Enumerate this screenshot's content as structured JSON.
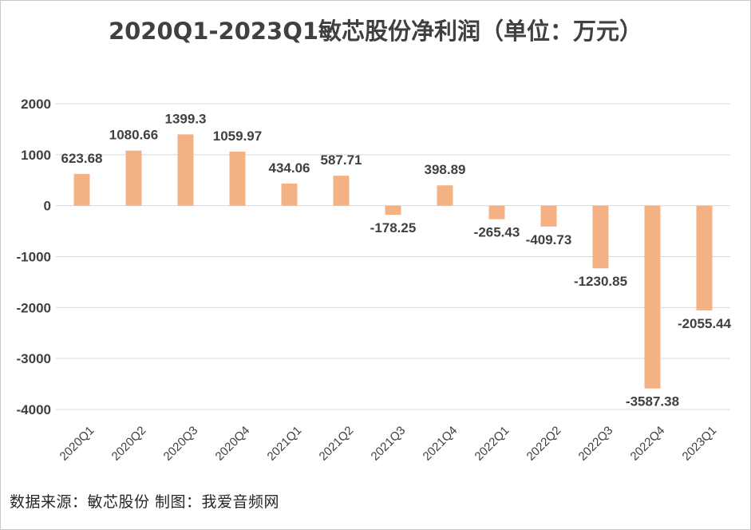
{
  "title": "2020Q1-2023Q1敏芯股份净利润（单位：万元）",
  "footer": "数据来源：敏芯股份 制图：我爱音频网",
  "colors": {
    "bar": "#f4b183",
    "grid": "#d9d9d9",
    "text": "#404040"
  },
  "chart_data": {
    "type": "bar",
    "title": "2020Q1-2023Q1敏芯股份净利润（单位：万元）",
    "xlabel": "",
    "ylabel": "",
    "ylim": [
      -4000,
      2000
    ],
    "yticks": [
      2000,
      1000,
      0,
      -1000,
      -2000,
      -3000,
      -4000
    ],
    "ytick_labels": [
      "2000",
      "1000",
      "0",
      "-1000",
      "-2000",
      "-3000",
      "-4000"
    ],
    "grid": true,
    "legend": "none",
    "categories": [
      "2020Q1",
      "2020Q2",
      "2020Q3",
      "2020Q4",
      "2021Q1",
      "2021Q2",
      "2021Q3",
      "2021Q4",
      "2022Q1",
      "2022Q2",
      "2022Q3",
      "2022Q4",
      "2023Q1"
    ],
    "values": [
      623.68,
      1080.66,
      1399.3,
      1059.97,
      434.06,
      587.71,
      -178.25,
      398.89,
      -265.43,
      -409.73,
      -1230.85,
      -3587.38,
      -2055.44
    ],
    "data_labels": [
      "623.68",
      "1080.66",
      "1399.3",
      "1059.97",
      "434.06",
      "587.71",
      "-178.25",
      "398.89",
      "-265.43",
      "-409.73",
      "-1230.85",
      "-3587.38",
      "-2055.44"
    ]
  }
}
